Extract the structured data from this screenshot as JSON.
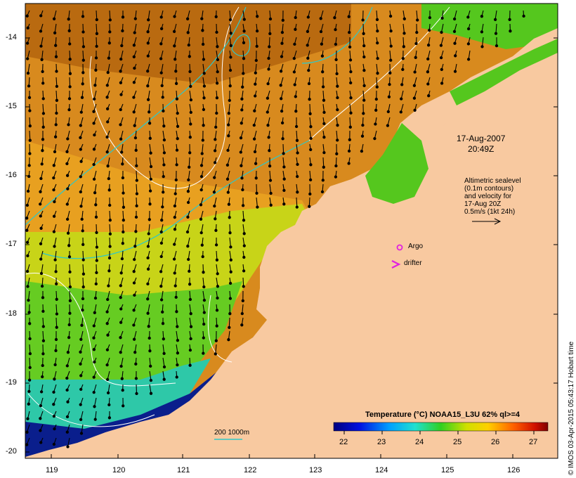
{
  "map": {
    "y_ticks": [
      "-14",
      "-15",
      "-16",
      "-17",
      "-18",
      "-19",
      "-20"
    ],
    "x_ticks": [
      "119",
      "120",
      "121",
      "122",
      "123",
      "124",
      "125",
      "126"
    ]
  },
  "annotations": {
    "date": "17-Aug-2007",
    "time": "20:49Z",
    "altimetric_lines": [
      "Altimetric sealevel",
      "(0.1m contours)",
      "and velocity for",
      "17-Aug 20Z",
      "0.5m/s (1kt 24h)"
    ],
    "argo_label": "Argo",
    "drifter_label": "drifter",
    "depth_label": "200  1000m"
  },
  "colorbar": {
    "title": "Temperature (°C) NOAA15_L3U 62% ql>=4",
    "ticks": [
      "22",
      "23",
      "24",
      "25",
      "26",
      "27"
    ]
  },
  "credit": "© IMOS 03-Apr-2015 05:43:17 Hobart time",
  "colors": {
    "land": "#f8c9a0",
    "deep_blue": "#0a1e8c",
    "green": "#55c71e",
    "orange": "#e08a14",
    "brown": "#b0600c",
    "depth_line": "#2ec8c8",
    "argo": "#e020e0"
  }
}
